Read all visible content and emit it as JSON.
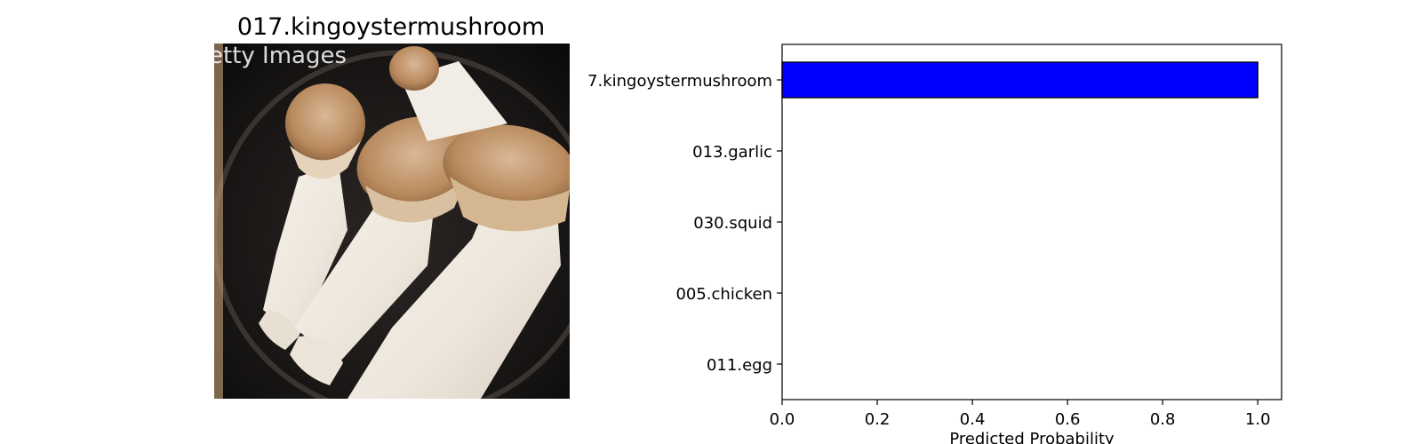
{
  "image_panel": {
    "title": "017.kingoystermushroom",
    "watermark": "etty Images"
  },
  "chart_data": {
    "type": "bar",
    "orientation": "horizontal",
    "categories": [
      "7.kingoystermushroom",
      "013.garlic",
      "030.squid",
      "005.chicken",
      "011.egg"
    ],
    "values": [
      1.0,
      0.0,
      0.0,
      0.0,
      0.0
    ],
    "xlabel": "Predicted Probability",
    "ylabel": "",
    "xlim": [
      0,
      1.05
    ],
    "xticks": [
      "0.0",
      "0.2",
      "0.4",
      "0.6",
      "0.8",
      "1.0"
    ],
    "bar_color": "#0000ff",
    "edge_color": "#000000",
    "grid": false
  }
}
